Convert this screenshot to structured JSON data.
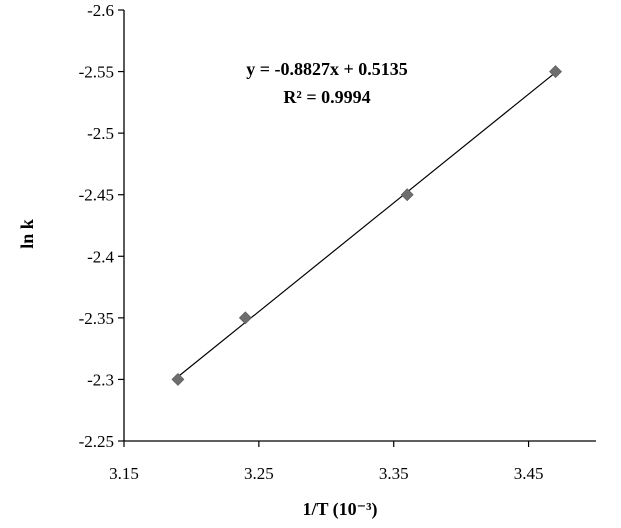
{
  "chart_data": {
    "type": "scatter",
    "title": "",
    "xlabel": "1/T (10⁻³)",
    "ylabel": "ln k",
    "xlim": [
      3.15,
      3.5
    ],
    "ylim": [
      -2.25,
      -2.6
    ],
    "y_axis_inverted": true,
    "x_ticks": [
      3.15,
      3.25,
      3.35,
      3.45
    ],
    "x_tick_labels": [
      "3.15",
      "3.25",
      "3.35",
      "3.45"
    ],
    "y_ticks": [
      -2.6,
      -2.55,
      -2.5,
      -2.45,
      -2.4,
      -2.35,
      -2.3,
      -2.25
    ],
    "y_tick_labels": [
      "-2.6",
      "-2.55",
      "-2.5",
      "-2.45",
      "-2.4",
      "-2.35",
      "-2.3",
      "-2.25"
    ],
    "grid": false,
    "legend": "none",
    "series": [
      {
        "x": [
          3.19,
          3.24,
          3.36,
          3.47
        ],
        "y": [
          -2.3,
          -2.35,
          -2.45,
          -2.55
        ],
        "marker": "diamond",
        "color": "#6e6e6e"
      }
    ],
    "trendline": {
      "x_range": [
        3.19,
        3.47
      ],
      "color": "#000000"
    },
    "annotations": [
      {
        "text": "y = -0.8827x + 0.5135"
      },
      {
        "text": "R² = 0.9994"
      }
    ]
  }
}
